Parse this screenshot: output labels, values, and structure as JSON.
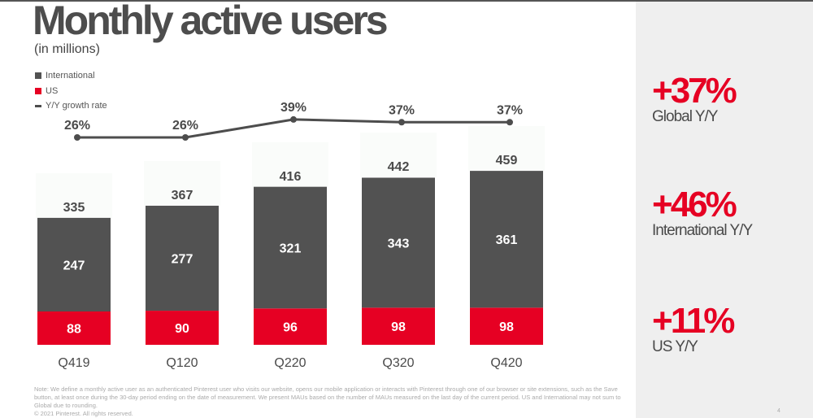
{
  "title": "Monthly active users",
  "subtitle": "(in millions)",
  "legend": [
    "International",
    "US",
    "Y/Y growth rate"
  ],
  "colors": {
    "international": "#525252",
    "us": "#e60023",
    "line": "#4d4d4d",
    "side_panel": "#efefef"
  },
  "chart_data": {
    "type": "bar",
    "stacked": true,
    "categories": [
      "Q419",
      "Q120",
      "Q220",
      "Q320",
      "Q420"
    ],
    "series": [
      {
        "name": "US",
        "values": [
          88,
          90,
          96,
          98,
          98
        ]
      },
      {
        "name": "International",
        "values": [
          247,
          277,
          321,
          343,
          361
        ]
      }
    ],
    "totals": [
      335,
      367,
      416,
      442,
      459
    ],
    "line_series": {
      "name": "Y/Y growth rate",
      "values": [
        26,
        26,
        39,
        37,
        37
      ],
      "labels": [
        "26%",
        "26%",
        "39%",
        "37%",
        "37%"
      ]
    }
  },
  "stats": [
    {
      "value": "+37%",
      "label": "Global Y/Y"
    },
    {
      "value": "+46%",
      "label": "International Y/Y"
    },
    {
      "value": "+11%",
      "label": "US Y/Y"
    }
  ],
  "footnote": "Note: We define a monthly active user as an authenticated Pinterest user who visits our website, opens our mobile application or interacts with Pinterest through one of our browser or site extensions, such as the Save button, at least once during the 30-day period ending on the date of measurement. We present MAUs based on the number of MAUs measured on the last day of the current period. US and International may not sum to Global due to rounding.",
  "copyright": "© 2021 Pinterest. All rights reserved.",
  "page_number": "4"
}
